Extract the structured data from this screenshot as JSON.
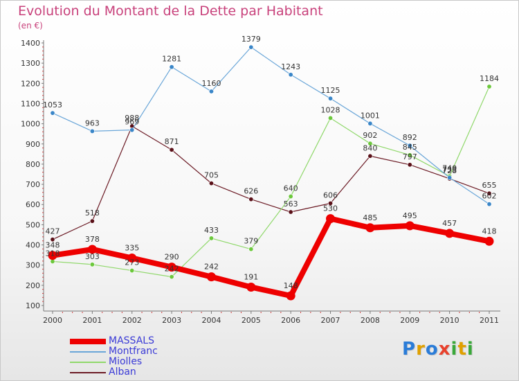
{
  "title": "Evolution du Montant de la Dette par Habitant",
  "subtitle": "(en €)",
  "logo_text": "Proxiti",
  "logo_colors": [
    "#2a7cd8",
    "#e0a000",
    "#2a7cd8",
    "#e8412c",
    "#3aa83a",
    "#e0a000",
    "#3aa83a"
  ],
  "chart_data": {
    "type": "line",
    "x": [
      "2000",
      "2001",
      "2002",
      "2003",
      "2004",
      "2005",
      "2006",
      "2007",
      "2008",
      "2009",
      "2010",
      "2011"
    ],
    "ylim": [
      100,
      1400
    ],
    "yticks": [
      100,
      200,
      300,
      400,
      500,
      600,
      700,
      800,
      900,
      1000,
      1100,
      1200,
      1300,
      1400
    ],
    "grid": false,
    "legend_position": "bottom-left",
    "series": [
      {
        "name": "Alban",
        "color": "#6b1a24",
        "marker": "#5a1018",
        "width": 1.2,
        "values": [
          427,
          518,
          988,
          871,
          705,
          626,
          563,
          606,
          840,
          797,
          728,
          655
        ]
      },
      {
        "name": "Miolles",
        "color": "#8fd86a",
        "marker": "#6cc83c",
        "width": 1.2,
        "values": [
          318,
          303,
          273,
          242,
          433,
          379,
          640,
          1028,
          902,
          845,
          740,
          1184
        ]
      },
      {
        "name": "Montfranc",
        "color": "#6aa6d8",
        "marker": "#3a86c8",
        "width": 1.2,
        "values": [
          1053,
          963,
          969,
          1281,
          1160,
          1379,
          1243,
          1125,
          1001,
          892,
          733,
          602
        ]
      },
      {
        "name": "MASSALS",
        "color": "#ee0000",
        "marker": "#ee0000",
        "width": 8,
        "values": [
          348,
          378,
          335,
          290,
          242,
          191,
          148,
          530,
          485,
          495,
          457,
          418
        ]
      }
    ],
    "legend_order": [
      "MASSALS",
      "Montfranc",
      "Miolles",
      "Alban"
    ]
  }
}
